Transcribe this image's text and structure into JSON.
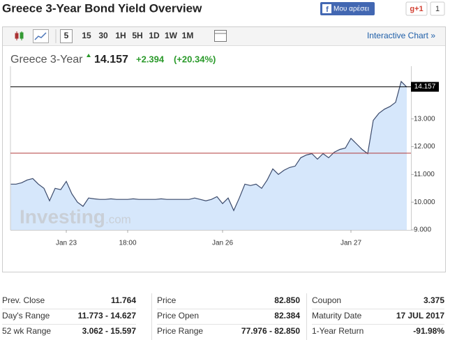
{
  "header": {
    "title": "Greece 3-Year Bond Yield Overview",
    "like": "Μου αρέσει",
    "gplus": "g+1",
    "gplus_count": "1"
  },
  "toolbar": {
    "periods": [
      "5",
      "15",
      "30",
      "1H",
      "5H",
      "1D",
      "1W",
      "1M"
    ],
    "active": 0,
    "link": "Interactive Chart »"
  },
  "quote": {
    "name": "Greece 3-Year",
    "last": "14.157",
    "change": "+2.394",
    "change_pct": "(+20.34%)"
  },
  "watermark": {
    "brand": "Investing",
    "suffix": ".com"
  },
  "chart_data": {
    "type": "area",
    "color": "#3b4a6b",
    "fill": "#d6e7fb",
    "categories": [
      null,
      null,
      null,
      null,
      null,
      null,
      null,
      null,
      null,
      null,
      "Jan 23",
      null,
      null,
      null,
      null,
      null,
      null,
      null,
      null,
      null,
      null,
      "18:00",
      null,
      null,
      null,
      null,
      null,
      null,
      null,
      null,
      null,
      null,
      null,
      null,
      null,
      null,
      null,
      null,
      "Jan 26",
      null,
      null,
      null,
      null,
      null,
      null,
      null,
      null,
      null,
      null,
      null,
      null,
      null,
      null,
      null,
      null,
      null,
      null,
      null,
      null,
      null,
      null,
      "Jan 27",
      null,
      null,
      null,
      null,
      null,
      null,
      null,
      null,
      null,
      null
    ],
    "values": [
      10.65,
      10.65,
      10.7,
      10.8,
      10.85,
      10.65,
      10.5,
      10.05,
      10.5,
      10.45,
      10.75,
      10.3,
      10.0,
      9.85,
      10.15,
      10.12,
      10.1,
      10.1,
      10.12,
      10.1,
      10.1,
      10.1,
      10.12,
      10.1,
      10.1,
      10.1,
      10.1,
      10.12,
      10.1,
      10.1,
      10.1,
      10.1,
      10.1,
      10.15,
      10.1,
      10.05,
      10.1,
      10.2,
      9.95,
      10.15,
      9.7,
      10.15,
      10.65,
      10.6,
      10.65,
      10.5,
      10.8,
      11.2,
      11.0,
      11.15,
      11.25,
      11.3,
      11.6,
      11.7,
      11.75,
      11.55,
      11.75,
      11.6,
      11.8,
      11.9,
      11.95,
      12.3,
      12.1,
      11.9,
      11.75,
      12.95,
      13.2,
      13.35,
      13.45,
      13.6,
      14.35,
      14.15
    ],
    "ylim": [
      9,
      14.9
    ],
    "yticks": [
      {
        "value": 9,
        "label": "9.000"
      },
      {
        "value": 10,
        "label": "10.000"
      },
      {
        "value": 11,
        "label": "11.000"
      },
      {
        "value": 12,
        "label": "12.000"
      },
      {
        "value": 13,
        "label": "13.000"
      }
    ],
    "last_price_line": 14.157,
    "last_price_color": "#000000",
    "prev_close_line": 11.764,
    "prev_close_color": "#b03a3a",
    "grid": false
  },
  "stats": [
    [
      [
        "Prev. Close",
        "11.764"
      ],
      [
        "Day's Range",
        "11.773 - 14.627"
      ],
      [
        "52 wk Range",
        "3.062 - 15.597"
      ]
    ],
    [
      [
        "Price",
        "82.850"
      ],
      [
        "Price Open",
        "82.384"
      ],
      [
        "Price Range",
        "77.976 - 82.850"
      ]
    ],
    [
      [
        "Coupon",
        "3.375"
      ],
      [
        "Maturity Date",
        "17 JUL 2017"
      ],
      [
        "1-Year Return",
        "-91.98%"
      ]
    ]
  ]
}
